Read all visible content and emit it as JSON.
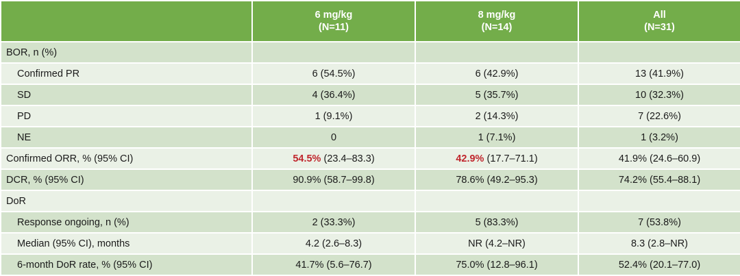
{
  "header": {
    "columns": [
      {
        "label": "",
        "sub": ""
      },
      {
        "label": "6 mg/kg",
        "sub": "(N=11)"
      },
      {
        "label": "8 mg/kg",
        "sub": "(N=14)"
      },
      {
        "label": "All",
        "sub": "(N=31)"
      }
    ]
  },
  "rows": [
    {
      "label": "BOR, n (%)",
      "indent": false,
      "style": "section",
      "values": [
        "",
        "",
        ""
      ]
    },
    {
      "label": "Confirmed PR",
      "indent": true,
      "style": "sub-light",
      "values": [
        "6 (54.5%)",
        "6 (42.9%)",
        "13 (41.9%)"
      ]
    },
    {
      "label": "SD",
      "indent": true,
      "style": "sub-dark",
      "values": [
        "4 (36.4%)",
        "5 (35.7%)",
        "10 (32.3%)"
      ]
    },
    {
      "label": "PD",
      "indent": true,
      "style": "sub-light",
      "values": [
        "1 (9.1%)",
        "2 (14.3%)",
        "7 (22.6%)"
      ]
    },
    {
      "label": "NE",
      "indent": true,
      "style": "sub-dark",
      "values": [
        "0",
        "1 (7.1%)",
        "1 (3.2%)"
      ]
    },
    {
      "label": "Confirmed ORR, % (95% CI)",
      "indent": false,
      "style": "sub-light",
      "values": [
        "(23.4–83.3)",
        "(17.7–71.1)",
        "41.9% (24.6–60.9)"
      ],
      "highlights": [
        "54.5%",
        "42.9%",
        ""
      ]
    },
    {
      "label": "DCR, % (95% CI)",
      "indent": false,
      "style": "sub-dark",
      "values": [
        "90.9% (58.7–99.8)",
        "78.6% (49.2–95.3)",
        "74.2% (55.4–88.1)"
      ]
    },
    {
      "label": "DoR",
      "indent": false,
      "style": "sub-light",
      "values": [
        "",
        "",
        ""
      ]
    },
    {
      "label": "Response ongoing, n (%)",
      "indent": true,
      "style": "sub-dark",
      "values": [
        "2 (33.3%)",
        "5 (83.3%)",
        "7 (53.8%)"
      ]
    },
    {
      "label": "Median (95% CI), months",
      "indent": true,
      "style": "sub-light",
      "values": [
        "4.2 (2.6–8.3)",
        "NR (4.2–NR)",
        "8.3 (2.8–NR)"
      ]
    },
    {
      "label": "6-month DoR rate, % (95% CI)",
      "indent": true,
      "style": "sub-dark",
      "values": [
        "41.7% (5.6–76.7)",
        "75.0% (12.8–96.1)",
        "52.4% (20.1–77.0)"
      ]
    }
  ],
  "colors": {
    "header_bg": "#73ad4a",
    "row_dark": "#d3e2cb",
    "row_light": "#eaf1e6",
    "highlight": "#c0262d"
  }
}
